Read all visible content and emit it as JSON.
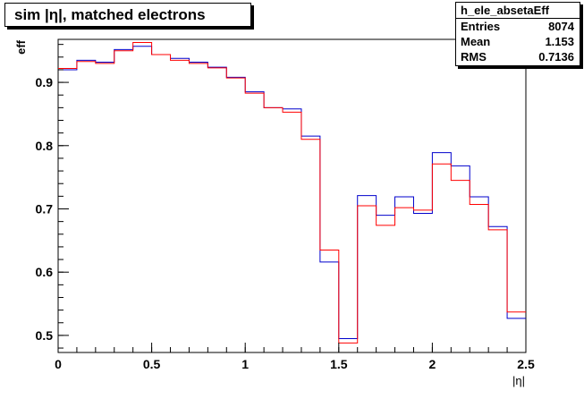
{
  "title": "sim |η|, matched electrons",
  "stats": {
    "name": "h_ele_absetaEff",
    "rows": [
      {
        "label": "Entries",
        "value": "8074"
      },
      {
        "label": "Mean",
        "value": "1.153"
      },
      {
        "label": "RMS",
        "value": "0.7136"
      }
    ]
  },
  "chart_data": {
    "type": "line",
    "xlabel": "|η|",
    "ylabel": "eff",
    "xlim": [
      0,
      2.5
    ],
    "ylim": [
      0.473,
      0.968
    ],
    "xticks": [
      "0",
      "0.5",
      "1",
      "1.5",
      "2",
      "2.5"
    ],
    "yticks": [
      "0.5",
      "0.6",
      "0.7",
      "0.8",
      "0.9"
    ],
    "bin_edges": [
      0,
      0.1,
      0.2,
      0.3,
      0.4,
      0.5,
      0.6,
      0.7,
      0.8,
      0.9,
      1.0,
      1.1,
      1.2,
      1.3,
      1.4,
      1.5,
      1.6,
      1.7,
      1.8,
      1.9,
      2.0,
      2.1,
      2.2,
      2.3,
      2.4,
      2.5
    ],
    "series": [
      {
        "color": "#0000cc",
        "values": [
          0.92,
          0.935,
          0.932,
          0.952,
          0.957,
          0.944,
          0.938,
          0.932,
          0.924,
          0.908,
          0.885,
          0.86,
          0.858,
          0.815,
          0.616,
          0.495,
          0.721,
          0.69,
          0.719,
          0.693,
          0.789,
          0.768,
          0.719,
          0.672,
          0.527
        ]
      },
      {
        "color": "#ff0000",
        "values": [
          0.922,
          0.933,
          0.93,
          0.95,
          0.963,
          0.944,
          0.935,
          0.93,
          0.923,
          0.907,
          0.883,
          0.86,
          0.853,
          0.81,
          0.635,
          0.488,
          0.705,
          0.674,
          0.702,
          0.698,
          0.771,
          0.745,
          0.707,
          0.667,
          0.537
        ]
      }
    ]
  }
}
